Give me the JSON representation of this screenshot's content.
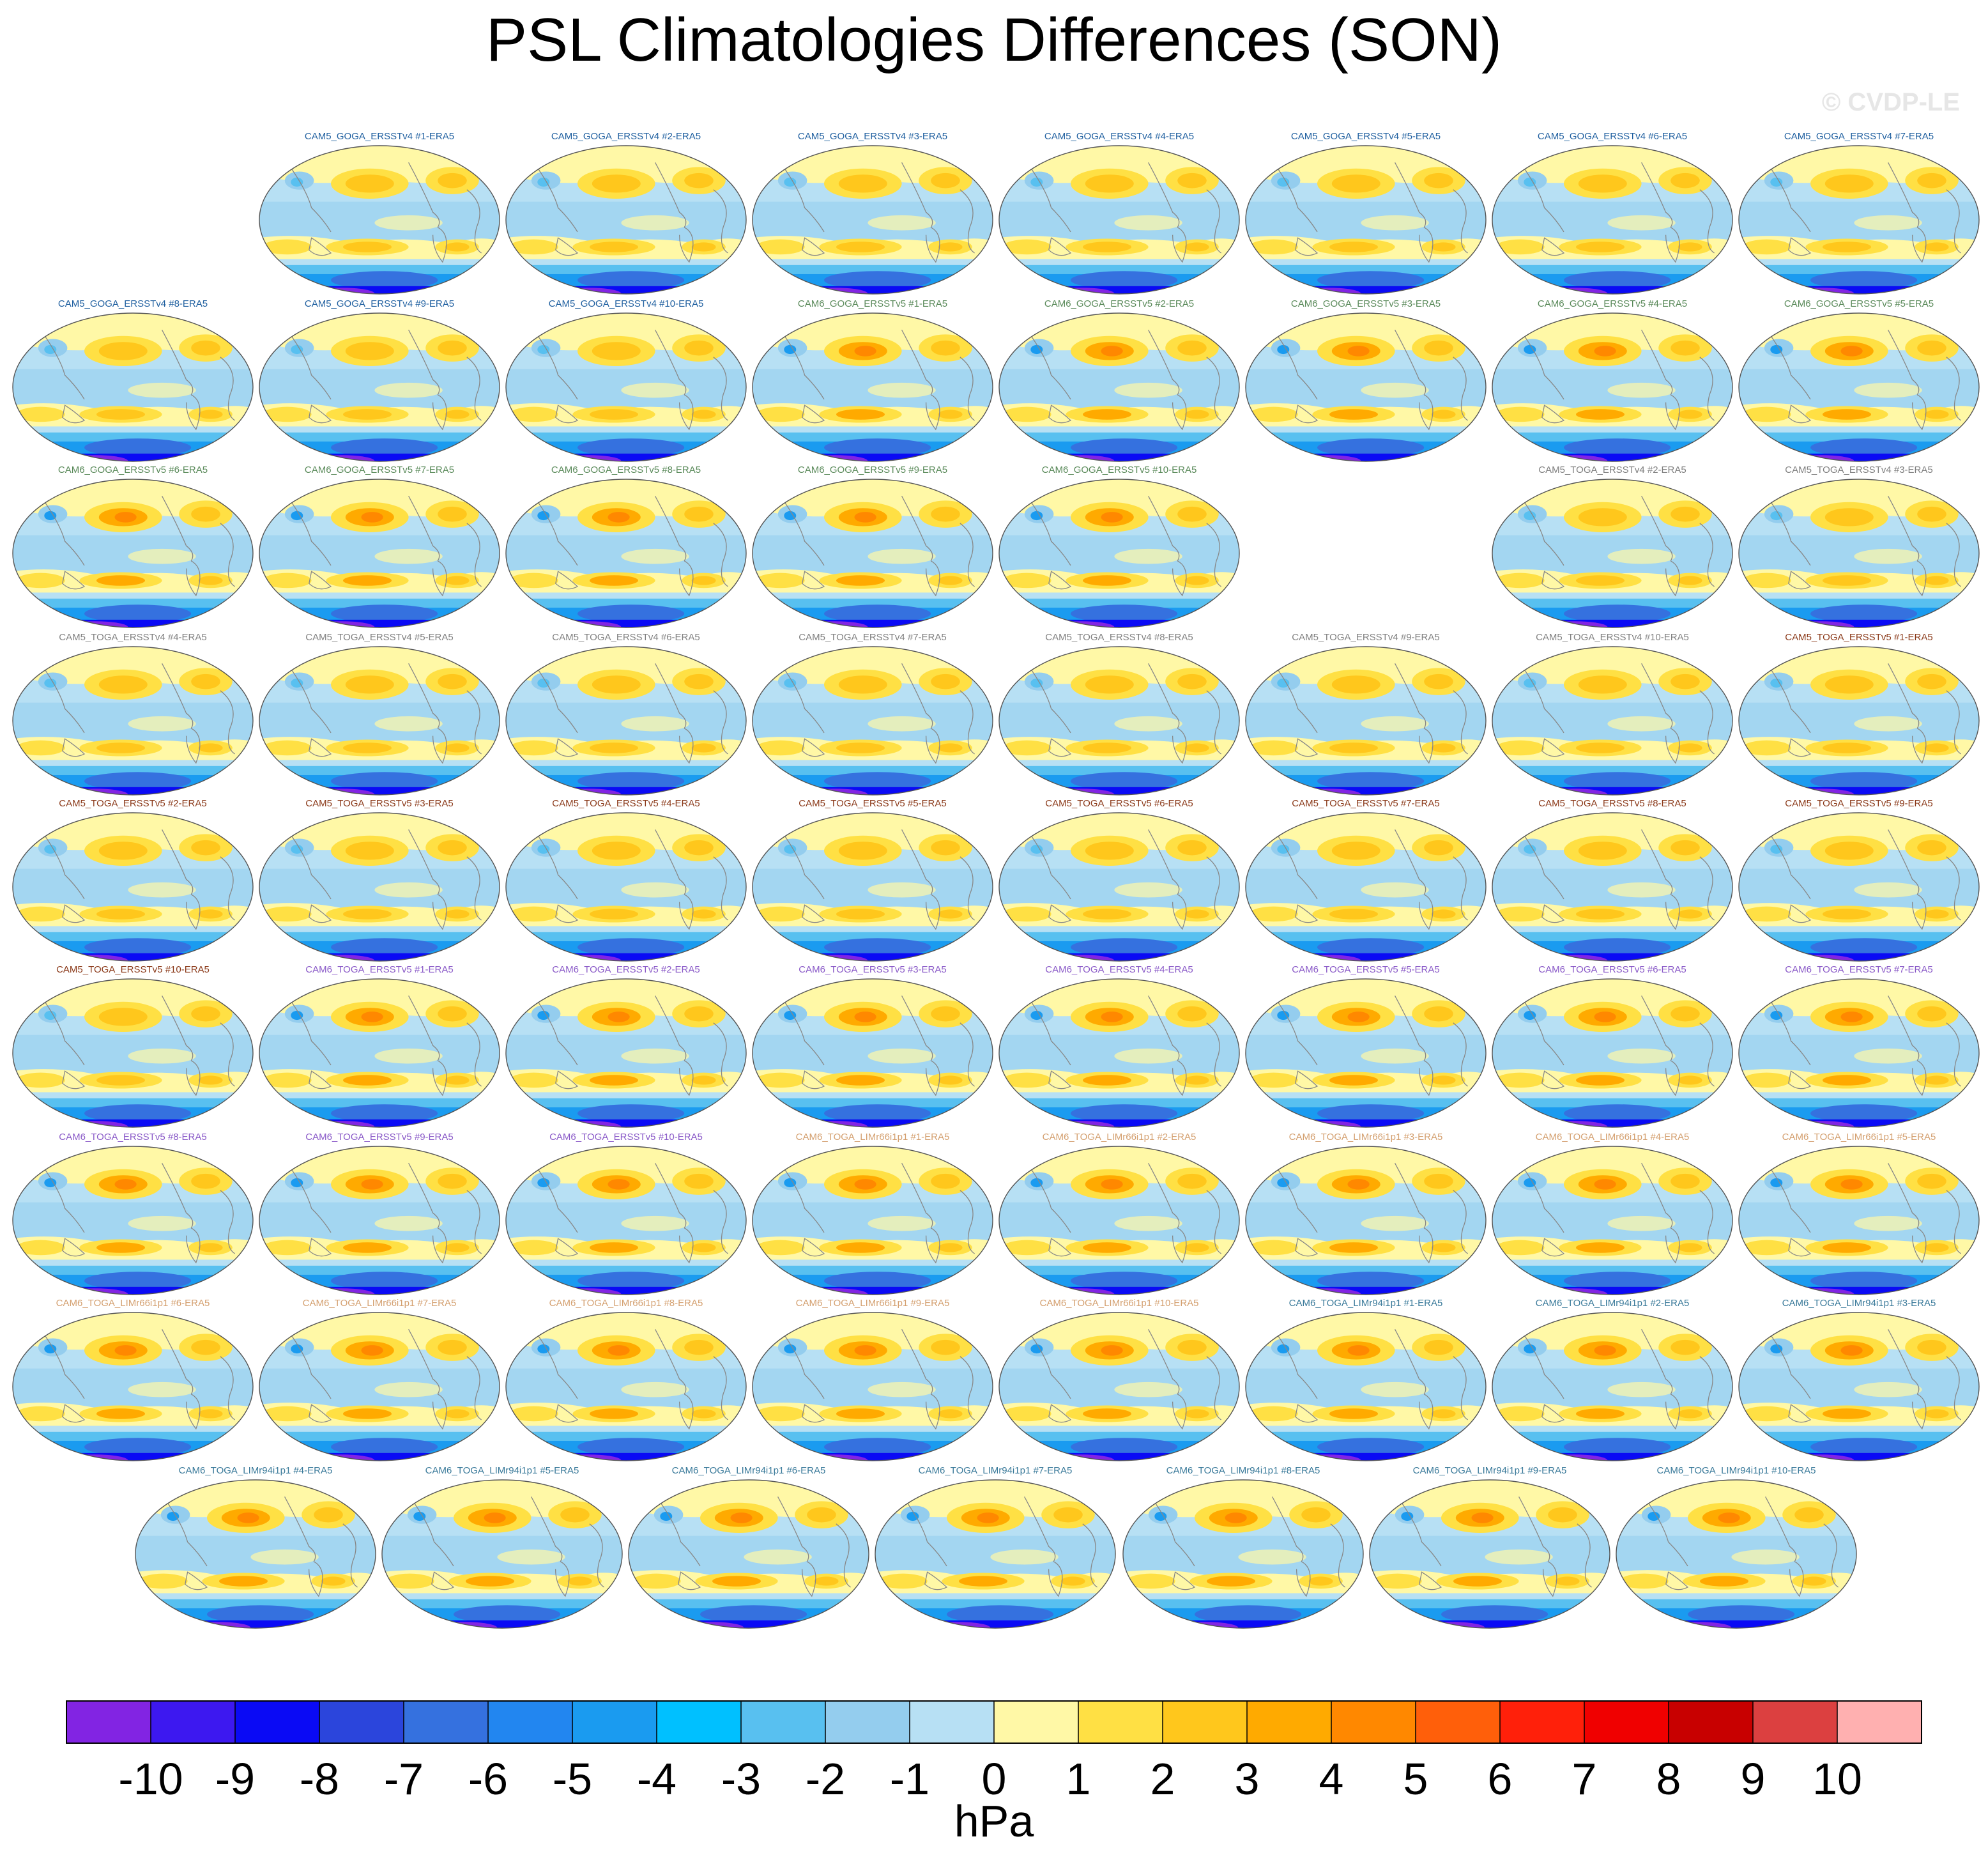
{
  "title": "PSL Climatologies Differences (SON)",
  "watermark": "© CVDP-LE",
  "units": "hPa",
  "chart_data": {
    "type": "heatmap",
    "title": "PSL Climatologies Differences (SON)",
    "colorbar": {
      "units": "hPa",
      "levels": [
        -10,
        -9,
        -8,
        -7,
        -6,
        -5,
        -4,
        -3,
        -2,
        -1,
        0,
        1,
        2,
        3,
        4,
        5,
        6,
        7,
        8,
        9,
        10
      ],
      "tick_labels": [
        "-10",
        "-9",
        "-8",
        "-7",
        "-6",
        "-5",
        "-4",
        "-3",
        "-2",
        "-1",
        "0",
        "1",
        "2",
        "3",
        "4",
        "5",
        "6",
        "7",
        "8",
        "9",
        "10"
      ],
      "colors": [
        "#8224e3",
        "#3d18f0",
        "#0a0af5",
        "#2b45dc",
        "#3571df",
        "#2286f0",
        "#1a9bf0",
        "#00c0ff",
        "#58c0f0",
        "#94cdee",
        "#b7e0f4",
        "#fff8a6",
        "#ffe044",
        "#ffc71c",
        "#ffaa00",
        "#ff8800",
        "#ff5f0a",
        "#ff200a",
        "#f00000",
        "#c80000",
        "#dc4040",
        "#ffb0b0"
      ]
    },
    "panels": [
      {
        "label": "CAM5_GOGA_ERSSTv4 #1-ERA5",
        "color": "#2060a0",
        "pattern": "a"
      },
      {
        "label": "CAM5_GOGA_ERSSTv4 #2-ERA5",
        "color": "#2060a0",
        "pattern": "a"
      },
      {
        "label": "CAM5_GOGA_ERSSTv4 #3-ERA5",
        "color": "#2060a0",
        "pattern": "a"
      },
      {
        "label": "CAM5_GOGA_ERSSTv4 #4-ERA5",
        "color": "#2060a0",
        "pattern": "a"
      },
      {
        "label": "CAM5_GOGA_ERSSTv4 #5-ERA5",
        "color": "#2060a0",
        "pattern": "a"
      },
      {
        "label": "CAM5_GOGA_ERSSTv4 #6-ERA5",
        "color": "#2060a0",
        "pattern": "a"
      },
      {
        "label": "CAM5_GOGA_ERSSTv4 #7-ERA5",
        "color": "#2060a0",
        "pattern": "a"
      },
      {
        "label": "CAM5_GOGA_ERSSTv4 #8-ERA5",
        "color": "#2060a0",
        "pattern": "a"
      },
      {
        "label": "CAM5_GOGA_ERSSTv4 #9-ERA5",
        "color": "#2060a0",
        "pattern": "a"
      },
      {
        "label": "CAM5_GOGA_ERSSTv4 #10-ERA5",
        "color": "#2060a0",
        "pattern": "a"
      },
      {
        "label": "CAM6_GOGA_ERSSTv5 #1-ERA5",
        "color": "#5a8a5a",
        "pattern": "b"
      },
      {
        "label": "CAM6_GOGA_ERSSTv5 #2-ERA5",
        "color": "#5a8a5a",
        "pattern": "b"
      },
      {
        "label": "CAM6_GOGA_ERSSTv5 #3-ERA5",
        "color": "#5a8a5a",
        "pattern": "b"
      },
      {
        "label": "CAM6_GOGA_ERSSTv5 #4-ERA5",
        "color": "#5a8a5a",
        "pattern": "b"
      },
      {
        "label": "CAM6_GOGA_ERSSTv5 #5-ERA5",
        "color": "#5a8a5a",
        "pattern": "b"
      },
      {
        "label": "CAM6_GOGA_ERSSTv5 #6-ERA5",
        "color": "#5a8a5a",
        "pattern": "b"
      },
      {
        "label": "CAM6_GOGA_ERSSTv5 #7-ERA5",
        "color": "#5a8a5a",
        "pattern": "b"
      },
      {
        "label": "CAM6_GOGA_ERSSTv5 #8-ERA5",
        "color": "#5a8a5a",
        "pattern": "b"
      },
      {
        "label": "CAM6_GOGA_ERSSTv5 #9-ERA5",
        "color": "#5a8a5a",
        "pattern": "b"
      },
      {
        "label": "CAM6_GOGA_ERSSTv5 #10-ERA5",
        "color": "#5a8a5a",
        "pattern": "b"
      },
      {
        "label": "CAM5_TOGA_ERSSTv4 #2-ERA5",
        "color": "#808080",
        "pattern": "a"
      },
      {
        "label": "CAM5_TOGA_ERSSTv4 #3-ERA5",
        "color": "#808080",
        "pattern": "a"
      },
      {
        "label": "CAM5_TOGA_ERSSTv4 #4-ERA5",
        "color": "#808080",
        "pattern": "a"
      },
      {
        "label": "CAM5_TOGA_ERSSTv4 #5-ERA5",
        "color": "#808080",
        "pattern": "a"
      },
      {
        "label": "CAM5_TOGA_ERSSTv4 #6-ERA5",
        "color": "#808080",
        "pattern": "a"
      },
      {
        "label": "CAM5_TOGA_ERSSTv4 #7-ERA5",
        "color": "#808080",
        "pattern": "a"
      },
      {
        "label": "CAM5_TOGA_ERSSTv4 #8-ERA5",
        "color": "#808080",
        "pattern": "a"
      },
      {
        "label": "CAM5_TOGA_ERSSTv4 #9-ERA5",
        "color": "#808080",
        "pattern": "a"
      },
      {
        "label": "CAM5_TOGA_ERSSTv4 #10-ERA5",
        "color": "#808080",
        "pattern": "a"
      },
      {
        "label": "CAM5_TOGA_ERSSTv5 #1-ERA5",
        "color": "#8b3a1a",
        "pattern": "a"
      },
      {
        "label": "CAM5_TOGA_ERSSTv5 #2-ERA5",
        "color": "#8b3a1a",
        "pattern": "a"
      },
      {
        "label": "CAM5_TOGA_ERSSTv5 #3-ERA5",
        "color": "#8b3a1a",
        "pattern": "a"
      },
      {
        "label": "CAM5_TOGA_ERSSTv5 #4-ERA5",
        "color": "#8b3a1a",
        "pattern": "a"
      },
      {
        "label": "CAM5_TOGA_ERSSTv5 #5-ERA5",
        "color": "#8b3a1a",
        "pattern": "a"
      },
      {
        "label": "CAM5_TOGA_ERSSTv5 #6-ERA5",
        "color": "#8b3a1a",
        "pattern": "a"
      },
      {
        "label": "CAM5_TOGA_ERSSTv5 #7-ERA5",
        "color": "#8b3a1a",
        "pattern": "a"
      },
      {
        "label": "CAM5_TOGA_ERSSTv5 #8-ERA5",
        "color": "#8b3a1a",
        "pattern": "a"
      },
      {
        "label": "CAM5_TOGA_ERSSTv5 #9-ERA5",
        "color": "#8b3a1a",
        "pattern": "a"
      },
      {
        "label": "CAM5_TOGA_ERSSTv5 #10-ERA5",
        "color": "#8b3a1a",
        "pattern": "a"
      },
      {
        "label": "CAM6_TOGA_ERSSTv5 #1-ERA5",
        "color": "#8a5ac8",
        "pattern": "b"
      },
      {
        "label": "CAM6_TOGA_ERSSTv5 #2-ERA5",
        "color": "#8a5ac8",
        "pattern": "b"
      },
      {
        "label": "CAM6_TOGA_ERSSTv5 #3-ERA5",
        "color": "#8a5ac8",
        "pattern": "b"
      },
      {
        "label": "CAM6_TOGA_ERSSTv5 #4-ERA5",
        "color": "#8a5ac8",
        "pattern": "b"
      },
      {
        "label": "CAM6_TOGA_ERSSTv5 #5-ERA5",
        "color": "#8a5ac8",
        "pattern": "b"
      },
      {
        "label": "CAM6_TOGA_ERSSTv5 #6-ERA5",
        "color": "#8a5ac8",
        "pattern": "b"
      },
      {
        "label": "CAM6_TOGA_ERSSTv5 #7-ERA5",
        "color": "#8a5ac8",
        "pattern": "b"
      },
      {
        "label": "CAM6_TOGA_ERSSTv5 #8-ERA5",
        "color": "#8a5ac8",
        "pattern": "b"
      },
      {
        "label": "CAM6_TOGA_ERSSTv5 #9-ERA5",
        "color": "#8a5ac8",
        "pattern": "b"
      },
      {
        "label": "CAM6_TOGA_ERSSTv5 #10-ERA5",
        "color": "#8a5ac8",
        "pattern": "b"
      },
      {
        "label": "CAM6_TOGA_LIMr66i1p1 #1-ERA5",
        "color": "#d4a070",
        "pattern": "b"
      },
      {
        "label": "CAM6_TOGA_LIMr66i1p1 #2-ERA5",
        "color": "#d4a070",
        "pattern": "b"
      },
      {
        "label": "CAM6_TOGA_LIMr66i1p1 #3-ERA5",
        "color": "#d4a070",
        "pattern": "b"
      },
      {
        "label": "CAM6_TOGA_LIMr66i1p1 #4-ERA5",
        "color": "#d4a070",
        "pattern": "b"
      },
      {
        "label": "CAM6_TOGA_LIMr66i1p1 #5-ERA5",
        "color": "#d4a070",
        "pattern": "b"
      },
      {
        "label": "CAM6_TOGA_LIMr66i1p1 #6-ERA5",
        "color": "#d4a070",
        "pattern": "b"
      },
      {
        "label": "CAM6_TOGA_LIMr66i1p1 #7-ERA5",
        "color": "#d4a070",
        "pattern": "b"
      },
      {
        "label": "CAM6_TOGA_LIMr66i1p1 #8-ERA5",
        "color": "#d4a070",
        "pattern": "b"
      },
      {
        "label": "CAM6_TOGA_LIMr66i1p1 #9-ERA5",
        "color": "#d4a070",
        "pattern": "b"
      },
      {
        "label": "CAM6_TOGA_LIMr66i1p1 #10-ERA5",
        "color": "#d4a070",
        "pattern": "b"
      },
      {
        "label": "CAM6_TOGA_LIMr94i1p1 #1-ERA5",
        "color": "#3a7a9a",
        "pattern": "b"
      },
      {
        "label": "CAM6_TOGA_LIMr94i1p1 #2-ERA5",
        "color": "#3a7a9a",
        "pattern": "b"
      },
      {
        "label": "CAM6_TOGA_LIMr94i1p1 #3-ERA5",
        "color": "#3a7a9a",
        "pattern": "b"
      },
      {
        "label": "CAM6_TOGA_LIMr94i1p1 #4-ERA5",
        "color": "#3a7a9a",
        "pattern": "b"
      },
      {
        "label": "CAM6_TOGA_LIMr94i1p1 #5-ERA5",
        "color": "#3a7a9a",
        "pattern": "b"
      },
      {
        "label": "CAM6_TOGA_LIMr94i1p1 #6-ERA5",
        "color": "#3a7a9a",
        "pattern": "b"
      },
      {
        "label": "CAM6_TOGA_LIMr94i1p1 #7-ERA5",
        "color": "#3a7a9a",
        "pattern": "b"
      },
      {
        "label": "CAM6_TOGA_LIMr94i1p1 #8-ERA5",
        "color": "#3a7a9a",
        "pattern": "b"
      },
      {
        "label": "CAM6_TOGA_LIMr94i1p1 #9-ERA5",
        "color": "#3a7a9a",
        "pattern": "b"
      },
      {
        "label": "CAM6_TOGA_LIMr94i1p1 #10-ERA5",
        "color": "#3a7a9a",
        "pattern": "b"
      }
    ]
  }
}
